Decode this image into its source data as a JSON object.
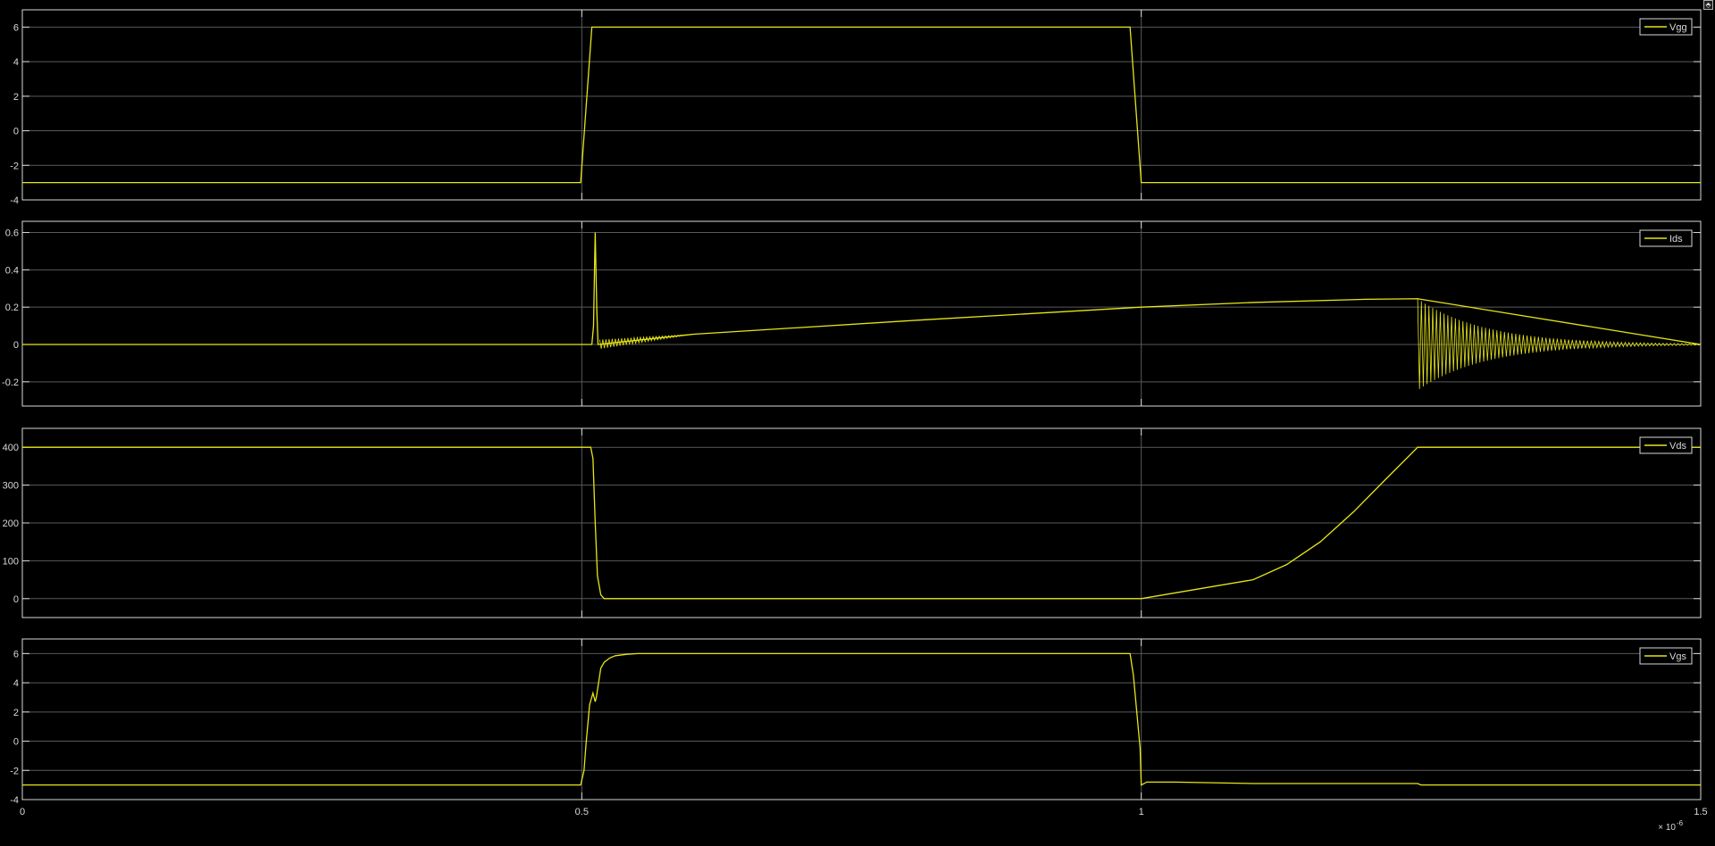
{
  "window": {
    "undock_glyph": "⬘"
  },
  "colors": {
    "background": "#000000",
    "axes_border": "#d9d9d9",
    "grid": "#5a5a5a",
    "tick_label": "#d9d9d9",
    "signal": "#e6e619"
  },
  "x_axis": {
    "ticks": [
      0,
      0.5,
      1,
      1.5
    ],
    "tick_labels": [
      "0",
      "0.5",
      "1",
      "1.5"
    ],
    "exponent_label": "× 10",
    "exponent_power": "-6",
    "xlim": [
      0,
      1.5
    ]
  },
  "chart_data": [
    {
      "type": "line",
      "title": "",
      "xlabel": "",
      "ylabel": "",
      "grid": true,
      "legend_position": "top-right",
      "ylim": [
        -4,
        7
      ],
      "yticks": [
        -4,
        -2,
        0,
        2,
        4,
        6
      ],
      "series": [
        {
          "name": "Vgg",
          "x": [
            0,
            0.499,
            0.509,
            0.99,
            1.0,
            1.5
          ],
          "y": [
            -3,
            -3,
            6,
            6,
            -3,
            -3
          ]
        }
      ]
    },
    {
      "type": "line",
      "title": "",
      "xlabel": "",
      "ylabel": "",
      "grid": true,
      "legend_position": "top-right",
      "ylim": [
        -0.33,
        0.66
      ],
      "yticks": [
        -0.2,
        0,
        0.2,
        0.4,
        0.6
      ],
      "series": [
        {
          "name": "Ids",
          "x": [
            0,
            0.509,
            0.5105,
            0.5115,
            0.512,
            0.513,
            0.5135,
            0.5145,
            0.6,
            0.8,
            1.0,
            1.1,
            1.2,
            1.247,
            1.5
          ],
          "y": [
            0,
            0,
            0.1,
            0.45,
            0.6,
            0.3,
            0.17,
            0.0,
            0.055,
            0.13,
            0.2,
            0.225,
            0.242,
            0.245,
            0.0
          ],
          "ringing": [
            {
              "x_start": 0.516,
              "x_end": 0.6,
              "amplitude": 0.025,
              "count": 30
            },
            {
              "x_start": 1.247,
              "x_end": 1.5,
              "amplitude": 0.245,
              "count": 75,
              "decays_to": 0
            }
          ]
        }
      ]
    },
    {
      "type": "line",
      "title": "",
      "xlabel": "",
      "ylabel": "",
      "grid": true,
      "legend_position": "top-right",
      "ylim": [
        -50,
        450
      ],
      "yticks": [
        0,
        100,
        200,
        300,
        400
      ],
      "series": [
        {
          "name": "Vds",
          "x": [
            0,
            0.508,
            0.51,
            0.512,
            0.514,
            0.517,
            0.52,
            1.0,
            1.05,
            1.1,
            1.13,
            1.16,
            1.19,
            1.22,
            1.247,
            1.5
          ],
          "y": [
            400,
            400,
            370,
            200,
            60,
            10,
            0,
            0,
            25,
            50,
            90,
            150,
            230,
            320,
            400,
            400
          ]
        }
      ]
    },
    {
      "type": "line",
      "title": "",
      "xlabel": "",
      "ylabel": "",
      "grid": true,
      "legend_position": "top-right",
      "ylim": [
        -4,
        7
      ],
      "yticks": [
        -4,
        -2,
        0,
        2,
        4,
        6
      ],
      "series": [
        {
          "name": "Vgs",
          "x": [
            0,
            0.499,
            0.502,
            0.504,
            0.507,
            0.51,
            0.512,
            0.513,
            0.515,
            0.517,
            0.52,
            0.525,
            0.53,
            0.54,
            0.55,
            0.56,
            0.58,
            0.99,
            0.993,
            0.996,
            0.999,
            1.0,
            1.005,
            1.03,
            1.1,
            1.247,
            1.25,
            1.5
          ],
          "y": [
            -3,
            -3,
            -2,
            0,
            2.5,
            3.3,
            2.7,
            3.0,
            4.0,
            5.0,
            5.4,
            5.7,
            5.85,
            5.95,
            6.0,
            6.0,
            6.0,
            6.0,
            4.5,
            2.0,
            -0.5,
            -3,
            -2.8,
            -2.8,
            -2.9,
            -2.9,
            -3,
            -3
          ]
        }
      ]
    }
  ]
}
